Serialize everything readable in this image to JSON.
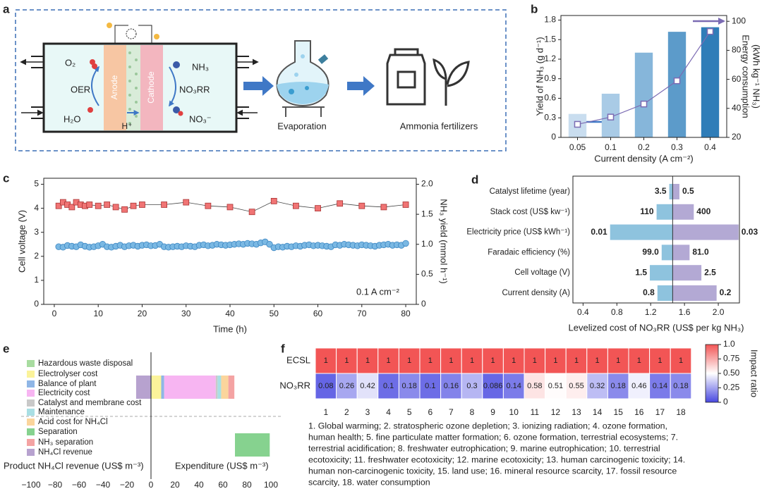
{
  "schematic": {
    "panel": "a",
    "labels": {
      "o2": "O₂",
      "oer": "OER",
      "h2o": "H₂O",
      "anode": "Anode",
      "cathode": "Cathode",
      "proton": "H⁺",
      "nh3": "NH₃",
      "no3rr": "NO₃RR",
      "no3": "NO₃⁻",
      "evaporation": "Evaporation",
      "fertilizers": "Ammonia fertilizers"
    }
  },
  "chart_data": [
    {
      "panel": "b",
      "type": "bar",
      "categories": [
        "0.05",
        "0.1",
        "0.2",
        "0.3",
        "0.4"
      ],
      "series": [
        {
          "type": "bar",
          "values": [
            0.36,
            0.67,
            1.3,
            1.62,
            1.69
          ],
          "colors": [
            "#c9ddef",
            "#a9cbe6",
            "#86b6da",
            "#5c9bca",
            "#2f7db8"
          ]
        },
        {
          "type": "line",
          "axis": "y2",
          "values": [
            29,
            34,
            43,
            59,
            93
          ],
          "color": "#7b6bb3"
        }
      ],
      "ylim": [
        0,
        1.87
      ],
      "yticks": [
        0,
        0.3,
        0.6,
        0.9,
        1.2,
        1.5,
        1.8
      ],
      "y2lim": [
        20,
        104
      ],
      "y2ticks": [
        20,
        40,
        60,
        80,
        100
      ],
      "xlabel": "Current density (A cm⁻²)",
      "ylabel": "Yield of NH₃ (g d⁻¹)",
      "y2label": [
        "Energy consumption",
        "(kWh kg⁻¹ NH₃)"
      ]
    },
    {
      "panel": "c",
      "type": "scatter",
      "series": [
        {
          "axis": "y",
          "marker": "circle",
          "color": "#7ab8e3",
          "x": [
            1,
            2,
            3,
            4,
            5,
            6,
            7,
            8,
            9,
            10,
            11,
            12,
            13,
            14,
            15,
            16,
            17,
            18,
            19,
            20,
            21,
            22,
            23,
            24,
            25,
            26,
            27,
            28,
            29,
            30,
            31,
            32,
            33,
            34,
            35,
            36,
            37,
            38,
            39,
            40,
            41,
            42,
            43,
            44,
            45,
            46,
            47,
            48,
            49,
            50,
            51,
            52,
            53,
            54,
            55,
            56,
            57,
            58,
            59,
            60,
            61,
            62,
            63,
            64,
            65,
            66,
            67,
            68,
            69,
            70,
            71,
            72,
            73,
            74,
            75,
            76,
            77,
            78,
            79,
            80
          ],
          "values": [
            2.4,
            2.38,
            2.45,
            2.42,
            2.4,
            2.48,
            2.42,
            2.38,
            2.4,
            2.44,
            2.5,
            2.4,
            2.38,
            2.42,
            2.46,
            2.4,
            2.44,
            2.46,
            2.42,
            2.46,
            2.48,
            2.44,
            2.45,
            2.5,
            2.4,
            2.38,
            2.4,
            2.42,
            2.4,
            2.44,
            2.42,
            2.4,
            2.46,
            2.48,
            2.44,
            2.46,
            2.5,
            2.48,
            2.46,
            2.48,
            2.5,
            2.52,
            2.5,
            2.54,
            2.52,
            2.5,
            2.56,
            2.6,
            2.5,
            2.36,
            2.4,
            2.38,
            2.42,
            2.4,
            2.44,
            2.42,
            2.46,
            2.48,
            2.44,
            2.46,
            2.44,
            2.42,
            2.4,
            2.48,
            2.46,
            2.5,
            2.48,
            2.46,
            2.44,
            2.48,
            2.46,
            2.44,
            2.42,
            2.46,
            2.48,
            2.5,
            2.46,
            2.48,
            2.46,
            2.54
          ]
        },
        {
          "axis": "y2",
          "marker": "square",
          "color": "#f07474",
          "x": [
            1,
            2,
            3,
            4,
            5,
            6,
            7,
            8,
            10,
            12,
            14,
            16,
            18,
            20,
            25,
            30,
            35,
            40,
            45,
            50,
            55,
            60,
            65,
            70,
            75,
            80
          ],
          "values": [
            1.64,
            1.7,
            1.66,
            1.62,
            1.7,
            1.66,
            1.64,
            1.66,
            1.64,
            1.66,
            1.62,
            1.58,
            1.64,
            1.66,
            1.66,
            1.7,
            1.64,
            1.62,
            1.54,
            1.72,
            1.64,
            1.6,
            1.68,
            1.64,
            1.62,
            1.66
          ]
        }
      ],
      "xlim": [
        -2.4,
        82.4
      ],
      "xticks": [
        0,
        10,
        20,
        30,
        40,
        50,
        60,
        70,
        80
      ],
      "ylim": [
        0,
        5.25
      ],
      "yticks": [
        0,
        1,
        2,
        3,
        4,
        5
      ],
      "y2lim": [
        0,
        2.1
      ],
      "y2ticks": [
        0,
        0.5,
        {
          "value": 1,
          "label": "1.0"
        },
        1.5,
        {
          "value": 2,
          "label": "2.0"
        }
      ],
      "xlabel": "Time (h)",
      "ylabel": "Cell voltage (V)",
      "y2label": "NH₃ yield (mmol h⁻¹)",
      "annotation": "0.1 A cm⁻²"
    },
    {
      "panel": "d",
      "type": "tornado",
      "categories": [
        "Catalyst lifetime (year)",
        "Stack cost (US$ kw⁻¹)",
        "Electricity price (US$ kWh⁻¹)",
        "Faradaic efficiency (%)",
        "Cell voltage (V)",
        "Current density (A)"
      ],
      "baseline": 1.46,
      "left_values": [
        1.42,
        1.27,
        0.72,
        1.33,
        1.19,
        1.28
      ],
      "left_labels": [
        "3.5",
        "110",
        "0.01",
        "99.0",
        "1.5",
        "0.8"
      ],
      "left_color": "#8ec3de",
      "right_values": [
        1.54,
        1.71,
        2.24,
        1.66,
        1.8,
        1.98
      ],
      "right_labels": [
        "0.5",
        "400",
        "0.03",
        "81.0",
        "2.5",
        "0.2"
      ],
      "right_color": "#b3a9d4",
      "xlim": [
        0.28,
        2.25
      ],
      "xticks": [
        0.4,
        0.8,
        1.2,
        1.6,
        {
          "value": 2,
          "label": "2.0"
        }
      ],
      "xlabel": "Levelized cost of NO₃RR (US$ per kg NH₃)"
    },
    {
      "panel": "e",
      "type": "barh",
      "series": [
        {
          "name": "Hazardous waste disposal",
          "color": "#a8dca0",
          "values": [
            0.5
          ]
        },
        {
          "name": "Electrolyser cost",
          "color": "#fbf39a",
          "values": [
            8
          ]
        },
        {
          "name": "Balance of plant",
          "color": "#8fb6e6",
          "values": [
            2.5
          ]
        },
        {
          "name": "Electricity cost",
          "color": "#f7b5f2",
          "values": [
            43
          ]
        },
        {
          "name": "Catalyst and membrane cost",
          "color": "#c9c9c9",
          "values": [
            1.5
          ]
        },
        {
          "name": "Maintenance",
          "color": "#a9dfe4",
          "values": [
            3
          ]
        },
        {
          "name": "Acid cost for NH₄Cl",
          "color": "#fbd59c",
          "values": [
            6
          ]
        },
        {
          "name": "Separation",
          "color": "#86d28f",
          "values": [
            null
          ],
          "range": [
            70,
            99
          ]
        },
        {
          "name": "NH₃ separation",
          "color": "#f4a3a3",
          "values": [
            5
          ]
        },
        {
          "name": "NH₄Cl revenue",
          "color": "#b7a2cf",
          "values": [
            -12.4
          ]
        }
      ],
      "xlim": [
        -100,
        100
      ],
      "xticks": [
        {
          "value": -100,
          "label": "−100"
        },
        {
          "value": -80,
          "label": "−80"
        },
        {
          "value": -60,
          "label": "−60"
        },
        {
          "value": -40,
          "label": "−40"
        },
        {
          "value": -20,
          "label": "−20"
        },
        0,
        20,
        40,
        60,
        80,
        100
      ],
      "xlabel_left": "Product NH₄Cl revenue (US$ m⁻³)",
      "xlabel_right": "Expenditure (US$ m⁻³)"
    },
    {
      "panel": "f",
      "type": "heatmap",
      "columns": [
        1,
        2,
        3,
        4,
        5,
        6,
        7,
        8,
        9,
        10,
        11,
        12,
        13,
        14,
        15,
        16,
        17,
        18
      ],
      "rows": [
        {
          "name": "ECSL",
          "values": [
            1,
            1,
            1,
            1,
            1,
            1,
            1,
            1,
            1,
            1,
            1,
            1,
            1,
            1,
            1,
            1,
            1,
            1
          ]
        },
        {
          "name": "NO₃RR",
          "values": [
            0.08,
            0.26,
            0.42,
            0.1,
            0.18,
            0.1,
            0.16,
            0.3,
            0.086,
            0.14,
            0.58,
            0.51,
            0.55,
            0.32,
            0.18,
            0.46,
            0.14,
            0.18
          ]
        }
      ],
      "low_color": "#4848e0",
      "mid_color": "#ffffff",
      "high_color": "#f25555",
      "colorbar": {
        "label": "Impact ratio",
        "lim": [
          0,
          1
        ],
        "ticks": [
          0,
          0.25,
          {
            "value": 0.5,
            "label": "0.50"
          },
          0.75,
          {
            "value": 1,
            "label": "1.0"
          }
        ]
      },
      "caption": [
        "1. Global warming; 2. stratospheric ozone depletion; 3. ionizing radiation; 4. ozone formation,",
        "human health; 5. fine particulate matter formation; 6. ozone formation, terrestrial ecosystems; 7.",
        "terrestrial acidification; 8. freshwater eutrophication; 9. marine eutrophication; 10. terrestrial",
        "ecotoxicity; 11. freshwater ecotoxicity; 12. marine ecotoxicity; 13. human carcinogenic toxicity; 14.",
        "human non-carcinogenic toxicity, 15. land use; 16. mineral resource scarcity, 17. fossil resource",
        "scarcity, 18. water consumption"
      ]
    }
  ]
}
